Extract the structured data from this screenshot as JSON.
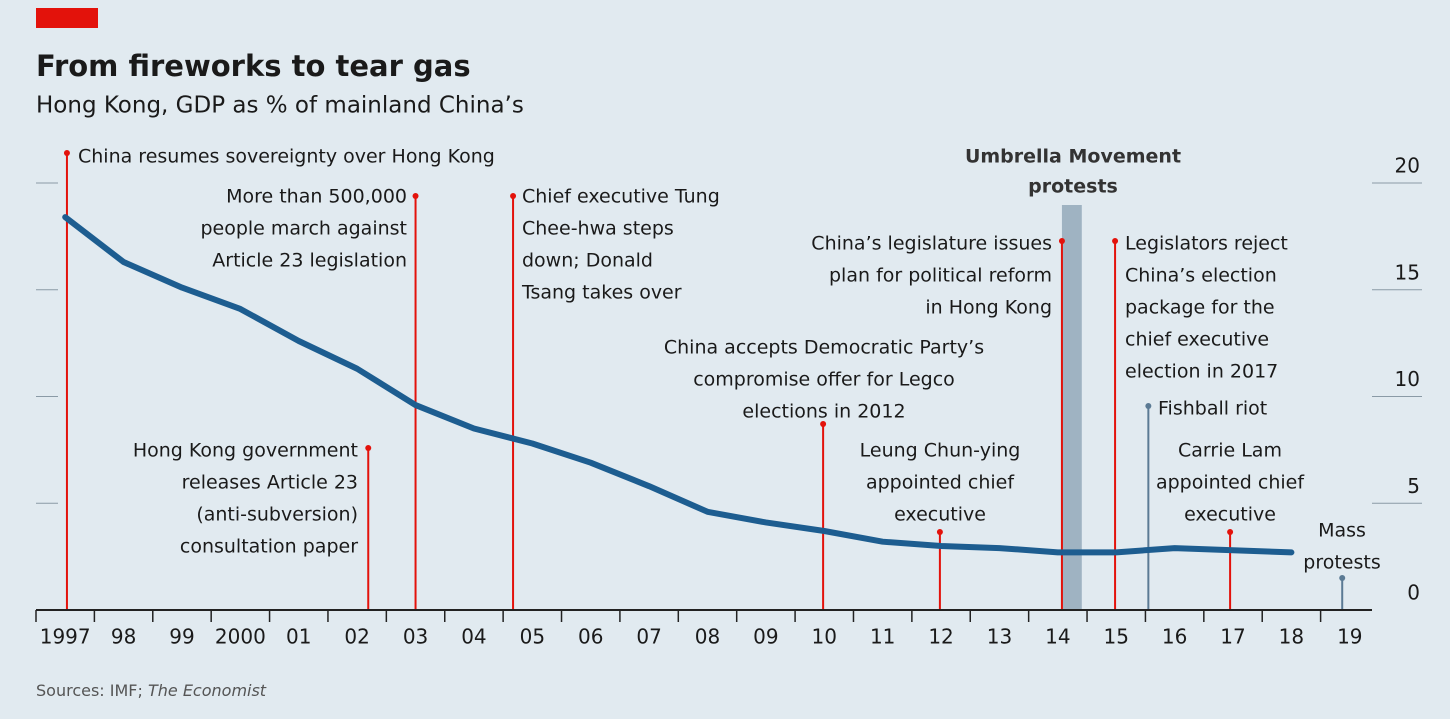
{
  "chart_data": {
    "type": "line",
    "title": "From fireworks to tear gas",
    "subtitle": "Hong Kong, GDP as % of mainland China’s",
    "source": [
      "Sources: IMF; ",
      "The Economist"
    ],
    "x": [
      1997,
      1998,
      1999,
      2000,
      2001,
      2002,
      2003,
      2004,
      2005,
      2006,
      2007,
      2008,
      2009,
      2010,
      2011,
      2012,
      2013,
      2014,
      2015,
      2016,
      2017,
      2018
    ],
    "values": [
      18.4,
      16.3,
      15.1,
      14.1,
      12.6,
      11.3,
      9.6,
      8.5,
      7.8,
      6.9,
      5.8,
      4.6,
      4.1,
      3.7,
      3.2,
      3.0,
      2.9,
      2.7,
      2.7,
      2.9,
      2.8,
      2.7
    ],
    "color": "#1d5d90",
    "xlim": [
      1996.5,
      2019.5
    ],
    "xticks": [
      1997,
      {
        "value": 1998,
        "label": "98"
      },
      {
        "value": 1999,
        "label": "99"
      },
      2000,
      {
        "value": 2001,
        "label": "01"
      },
      {
        "value": 2002,
        "label": "02"
      },
      {
        "value": 2003,
        "label": "03"
      },
      {
        "value": 2004,
        "label": "04"
      },
      {
        "value": 2005,
        "label": "05"
      },
      {
        "value": 2006,
        "label": "06"
      },
      {
        "value": 2007,
        "label": "07"
      },
      {
        "value": 2008,
        "label": "08"
      },
      {
        "value": 2009,
        "label": "09"
      },
      {
        "value": 2010,
        "label": "10"
      },
      {
        "value": 2011,
        "label": "11"
      },
      {
        "value": 2012,
        "label": "12"
      },
      {
        "value": 2013,
        "label": "13"
      },
      {
        "value": 2014,
        "label": "14"
      },
      {
        "value": 2015,
        "label": "15"
      },
      {
        "value": 2016,
        "label": "16"
      },
      {
        "value": 2017,
        "label": "17"
      },
      {
        "value": 2018,
        "label": "18"
      },
      {
        "value": 2019,
        "label": "19"
      }
    ],
    "ylim": [
      0,
      20
    ],
    "yticks": [
      0,
      5,
      10,
      15,
      20
    ],
    "events": [
      {
        "label": [
          "China resumes sovereignty over Hong Kong"
        ],
        "x": 1997.03,
        "color": "#e3120b"
      },
      {
        "label": [
          "Hong Kong government",
          "releases Article 23",
          "(anti-subversion)",
          "consultation paper"
        ],
        "x": 2002.19,
        "color": "#e3120b"
      },
      {
        "label": [
          "More than 500,000",
          "people march against",
          "Article 23 legislation"
        ],
        "x": 2003.0,
        "color": "#e3120b"
      },
      {
        "label": [
          "Chief executive Tung",
          "Chee-hwa steps",
          "down; Donald",
          "Tsang takes over"
        ],
        "x": 2004.67,
        "color": "#e3120b"
      },
      {
        "label": [
          "China accepts Democratic Party’s",
          "compromise offer for Legco",
          "elections in 2012"
        ],
        "x": 2009.98,
        "color": "#e3120b"
      },
      {
        "label": [
          "Leung Chun-ying",
          "appointed chief",
          "executive"
        ],
        "x": 2011.98,
        "color": "#e3120b"
      },
      {
        "label": [
          "China’s legislature issues",
          "plan for political reform",
          "in Hong Kong"
        ],
        "x": 2014.07,
        "color": "#e3120b"
      },
      {
        "label": [
          "Legislators reject",
          "China’s election",
          "package for the",
          "chief executive",
          "election in 2017"
        ],
        "x": 2014.98,
        "color": "#e3120b"
      },
      {
        "label": [
          "Fishball riot"
        ],
        "x": 2015.55,
        "color": "#5b7a94"
      },
      {
        "label": [
          "Carrie Lam",
          "appointed chief",
          "executive"
        ],
        "x": 2016.95,
        "color": "#e3120b"
      },
      {
        "label": [
          "Mass",
          "protests"
        ],
        "x": 2018.87,
        "color": "#5b7a94"
      }
    ],
    "shaded": {
      "label": [
        "Umbrella Movement",
        "protests"
      ],
      "x": [
        2014.07,
        2014.41
      ],
      "color": "#9fb3c2"
    }
  }
}
